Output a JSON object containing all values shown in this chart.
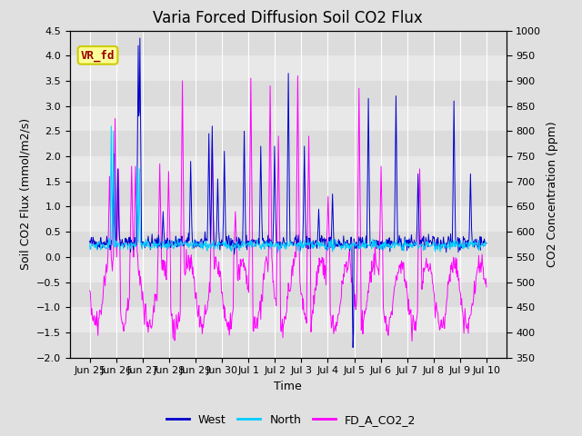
{
  "title": "Varia Forced Diffusion Soil CO2 Flux",
  "xlabel": "Time",
  "ylabel_left": "Soil CO2 Flux (mmol/m2/s)",
  "ylabel_right": "CO2 Concentration (ppm)",
  "ylim_left": [
    -2.0,
    4.5
  ],
  "ylim_right": [
    350,
    1000
  ],
  "xtick_labels": [
    "Jun 25",
    "Jun 26",
    "Jun 27",
    "Jun 28",
    "Jun 29",
    "Jun 30",
    "Jul 1",
    "Jul 2",
    "Jul 3",
    "Jul 4",
    "Jul 5",
    "Jul 6",
    "Jul 7",
    "Jul 8",
    "Jul 9",
    "Jul 10"
  ],
  "color_west": "#0000CC",
  "color_north": "#00CCFF",
  "color_co2": "#FF00FF",
  "bg_color": "#E0E0E0",
  "plot_bg": "#E8E8E8",
  "annotation_text": "VR_fd",
  "annotation_bg": "#FFFF99",
  "annotation_border": "#CCCC00",
  "legend_labels": [
    "West",
    "North",
    "FD_A_CO2_2"
  ],
  "title_fontsize": 12,
  "axis_label_fontsize": 9,
  "tick_label_fontsize": 8,
  "right_ticks": [
    350,
    400,
    450,
    500,
    550,
    600,
    650,
    700,
    750,
    800,
    850,
    900,
    950,
    1000
  ],
  "left_ticks": [
    -2.0,
    -1.5,
    -1.0,
    -0.5,
    0.0,
    0.5,
    1.0,
    1.5,
    2.0,
    2.5,
    3.0,
    3.5,
    4.0,
    4.5
  ]
}
